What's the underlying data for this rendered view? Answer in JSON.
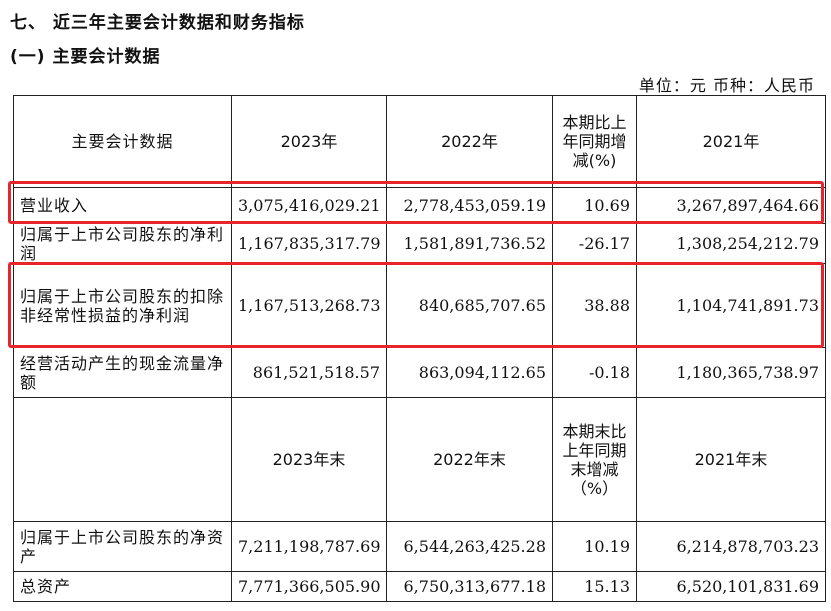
{
  "section_title": "七、 近三年主要会计数据和财务指标",
  "subsection_title": "(一) 主要会计数据",
  "unit_line": "单位：元  币种：人民币",
  "header1": {
    "label": "主要会计数据",
    "y2023": "2023年",
    "y2022": "2022年",
    "change": "本期比上年同期增减(%)",
    "y2021": "2021年"
  },
  "rows1": [
    {
      "label": "营业收入",
      "v2023": "3,075,416,029.21",
      "v2022": "2,778,453,059.19",
      "change": "10.69",
      "v2021": "3,267,897,464.66"
    },
    {
      "label": "归属于上市公司股东的净利润",
      "v2023": "1,167,835,317.79",
      "v2022": "1,581,891,736.52",
      "change": "-26.17",
      "v2021": "1,308,254,212.79"
    },
    {
      "label": "归属于上市公司股东的扣除非经常性损益的净利润",
      "v2023": "1,167,513,268.73",
      "v2022": "840,685,707.65",
      "change": "38.88",
      "v2021": "1,104,741,891.73"
    },
    {
      "label": "经营活动产生的现金流量净额",
      "v2023": "861,521,518.57",
      "v2022": "863,094,112.65",
      "change": "-0.18",
      "v2021": "1,180,365,738.97"
    }
  ],
  "header2": {
    "label": "",
    "y2023": "2023年末",
    "y2022": "2022年末",
    "change": "本期末比上年同期末增减（%）",
    "y2021": "2021年末"
  },
  "rows2": [
    {
      "label": "归属于上市公司股东的净资产",
      "v2023": "7,211,198,787.69",
      "v2022": "6,544,263,425.28",
      "change": "10.19",
      "v2021": "6,214,878,703.23"
    },
    {
      "label": "总资产",
      "v2023": "7,771,366,505.90",
      "v2022": "6,750,313,677.18",
      "change": "15.13",
      "v2021": "6,520,101,831.69"
    }
  ],
  "highlight_color": "#e6262a"
}
